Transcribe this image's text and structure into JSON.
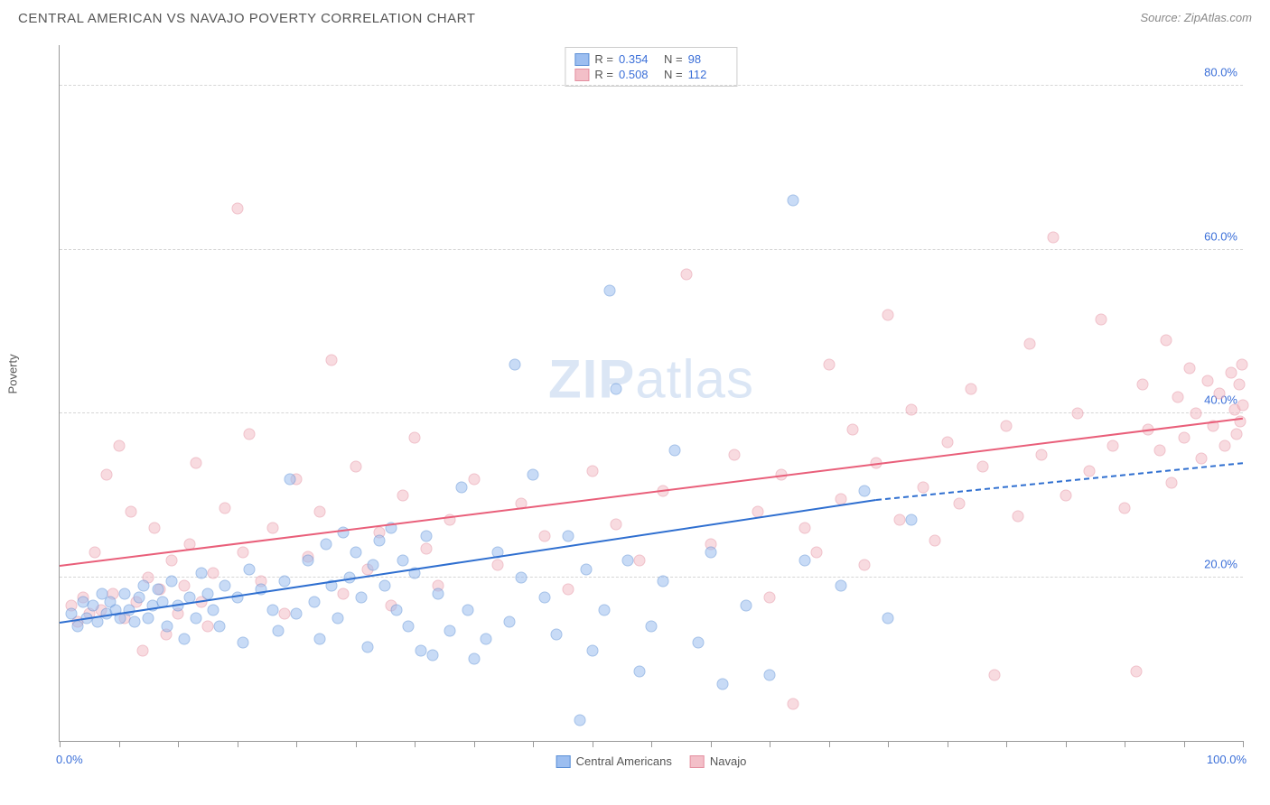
{
  "title": "CENTRAL AMERICAN VS NAVAJO POVERTY CORRELATION CHART",
  "source_prefix": "Source: ",
  "source": "ZipAtlas.com",
  "y_axis_label": "Poverty",
  "watermark_bold": "ZIP",
  "watermark_rest": "atlas",
  "chart": {
    "type": "scatter",
    "xlim": [
      0,
      100
    ],
    "ylim": [
      0,
      85
    ],
    "x_ticks": [
      0,
      5,
      10,
      15,
      20,
      25,
      30,
      35,
      40,
      45,
      50,
      55,
      60,
      65,
      70,
      75,
      80,
      85,
      90,
      95,
      100
    ],
    "x_tick_labels": {
      "0": "0.0%",
      "100": "100.0%"
    },
    "y_gridlines": [
      20,
      40,
      60,
      80
    ],
    "y_tick_labels": {
      "20": "20.0%",
      "40": "40.0%",
      "60": "60.0%",
      "80": "80.0%"
    },
    "grid_color": "#d6d6d6",
    "axis_color": "#999999",
    "tick_label_color": "#3b6fd8",
    "point_radius": 6.5,
    "point_opacity": 0.55,
    "series": [
      {
        "name": "Central Americans",
        "key": "central",
        "R": "0.354",
        "N": "98",
        "fill": "#9cbef0",
        "stroke": "#5b8fd6",
        "trend_color": "#2f6fd0",
        "trend": {
          "x1": 0,
          "y1": 14.5,
          "x2": 69,
          "y2": 29.5
        },
        "trend_dash": {
          "x1": 69,
          "y1": 29.5,
          "x2": 100,
          "y2": 34.0
        },
        "points": [
          [
            1.0,
            15.5
          ],
          [
            1.5,
            14.0
          ],
          [
            2.0,
            17.0
          ],
          [
            2.3,
            15.0
          ],
          [
            2.8,
            16.5
          ],
          [
            3.2,
            14.5
          ],
          [
            3.6,
            18.0
          ],
          [
            4.0,
            15.5
          ],
          [
            4.3,
            17.0
          ],
          [
            4.7,
            16.0
          ],
          [
            5.1,
            15.0
          ],
          [
            5.5,
            18.0
          ],
          [
            5.9,
            16.0
          ],
          [
            6.3,
            14.5
          ],
          [
            6.7,
            17.5
          ],
          [
            7.1,
            19.0
          ],
          [
            7.5,
            15.0
          ],
          [
            7.9,
            16.5
          ],
          [
            8.3,
            18.5
          ],
          [
            8.7,
            17.0
          ],
          [
            9.1,
            14.0
          ],
          [
            9.5,
            19.5
          ],
          [
            10.0,
            16.5
          ],
          [
            10.5,
            12.5
          ],
          [
            11.0,
            17.5
          ],
          [
            11.5,
            15.0
          ],
          [
            12.0,
            20.5
          ],
          [
            12.5,
            18.0
          ],
          [
            13.0,
            16.0
          ],
          [
            13.5,
            14.0
          ],
          [
            14.0,
            19.0
          ],
          [
            15.0,
            17.5
          ],
          [
            15.5,
            12.0
          ],
          [
            16.0,
            21.0
          ],
          [
            17.0,
            18.5
          ],
          [
            18.0,
            16.0
          ],
          [
            18.5,
            13.5
          ],
          [
            19.0,
            19.5
          ],
          [
            19.5,
            32.0
          ],
          [
            20.0,
            15.5
          ],
          [
            21.0,
            22.0
          ],
          [
            21.5,
            17.0
          ],
          [
            22.0,
            12.5
          ],
          [
            22.5,
            24.0
          ],
          [
            23.0,
            19.0
          ],
          [
            23.5,
            15.0
          ],
          [
            24.0,
            25.5
          ],
          [
            24.5,
            20.0
          ],
          [
            25.0,
            23.0
          ],
          [
            25.5,
            17.5
          ],
          [
            26.0,
            11.5
          ],
          [
            26.5,
            21.5
          ],
          [
            27.0,
            24.5
          ],
          [
            27.5,
            19.0
          ],
          [
            28.0,
            26.0
          ],
          [
            28.5,
            16.0
          ],
          [
            29.0,
            22.0
          ],
          [
            29.5,
            14.0
          ],
          [
            30.0,
            20.5
          ],
          [
            30.5,
            11.0
          ],
          [
            31.0,
            25.0
          ],
          [
            31.5,
            10.5
          ],
          [
            32.0,
            18.0
          ],
          [
            33.0,
            13.5
          ],
          [
            34.0,
            31.0
          ],
          [
            34.5,
            16.0
          ],
          [
            35.0,
            10.0
          ],
          [
            36.0,
            12.5
          ],
          [
            37.0,
            23.0
          ],
          [
            38.0,
            14.5
          ],
          [
            38.5,
            46.0
          ],
          [
            39.0,
            20.0
          ],
          [
            40.0,
            32.5
          ],
          [
            41.0,
            17.5
          ],
          [
            42.0,
            13.0
          ],
          [
            43.0,
            25.0
          ],
          [
            44.0,
            2.5
          ],
          [
            44.5,
            21.0
          ],
          [
            45.0,
            11.0
          ],
          [
            46.0,
            16.0
          ],
          [
            46.5,
            55.0
          ],
          [
            47.0,
            43.0
          ],
          [
            48.0,
            22.0
          ],
          [
            49.0,
            8.5
          ],
          [
            50.0,
            14.0
          ],
          [
            51.0,
            19.5
          ],
          [
            52.0,
            35.5
          ],
          [
            54.0,
            12.0
          ],
          [
            55.0,
            23.0
          ],
          [
            56.0,
            7.0
          ],
          [
            58.0,
            16.5
          ],
          [
            60.0,
            8.0
          ],
          [
            62.0,
            66.0
          ],
          [
            63.0,
            22.0
          ],
          [
            66.0,
            19.0
          ],
          [
            68.0,
            30.5
          ],
          [
            70.0,
            15.0
          ],
          [
            72.0,
            27.0
          ]
        ]
      },
      {
        "name": "Navajo",
        "key": "navajo",
        "R": "0.508",
        "N": "112",
        "fill": "#f3bfc8",
        "stroke": "#e48fa0",
        "trend_color": "#e95f7a",
        "trend": {
          "x1": 0,
          "y1": 21.5,
          "x2": 100,
          "y2": 39.5
        },
        "points": [
          [
            1.0,
            16.5
          ],
          [
            1.5,
            14.5
          ],
          [
            2.0,
            17.5
          ],
          [
            2.5,
            15.5
          ],
          [
            3.0,
            23.0
          ],
          [
            3.5,
            16.0
          ],
          [
            4.0,
            32.5
          ],
          [
            4.5,
            18.0
          ],
          [
            5.0,
            36.0
          ],
          [
            5.5,
            15.0
          ],
          [
            6.0,
            28.0
          ],
          [
            6.5,
            17.0
          ],
          [
            7.0,
            11.0
          ],
          [
            7.5,
            20.0
          ],
          [
            8.0,
            26.0
          ],
          [
            8.5,
            18.5
          ],
          [
            9.0,
            13.0
          ],
          [
            9.5,
            22.0
          ],
          [
            10.0,
            15.5
          ],
          [
            10.5,
            19.0
          ],
          [
            11.0,
            24.0
          ],
          [
            11.5,
            34.0
          ],
          [
            12.0,
            17.0
          ],
          [
            12.5,
            14.0
          ],
          [
            13.0,
            20.5
          ],
          [
            14.0,
            28.5
          ],
          [
            15.0,
            65.0
          ],
          [
            15.5,
            23.0
          ],
          [
            16.0,
            37.5
          ],
          [
            17.0,
            19.5
          ],
          [
            18.0,
            26.0
          ],
          [
            19.0,
            15.5
          ],
          [
            20.0,
            32.0
          ],
          [
            21.0,
            22.5
          ],
          [
            22.0,
            28.0
          ],
          [
            23.0,
            46.5
          ],
          [
            24.0,
            18.0
          ],
          [
            25.0,
            33.5
          ],
          [
            26.0,
            21.0
          ],
          [
            27.0,
            25.5
          ],
          [
            28.0,
            16.5
          ],
          [
            29.0,
            30.0
          ],
          [
            30.0,
            37.0
          ],
          [
            31.0,
            23.5
          ],
          [
            32.0,
            19.0
          ],
          [
            33.0,
            27.0
          ],
          [
            35.0,
            32.0
          ],
          [
            37.0,
            21.5
          ],
          [
            39.0,
            29.0
          ],
          [
            41.0,
            25.0
          ],
          [
            43.0,
            18.5
          ],
          [
            45.0,
            33.0
          ],
          [
            47.0,
            26.5
          ],
          [
            49.0,
            22.0
          ],
          [
            51.0,
            30.5
          ],
          [
            53.0,
            57.0
          ],
          [
            55.0,
            24.0
          ],
          [
            57.0,
            35.0
          ],
          [
            59.0,
            28.0
          ],
          [
            60.0,
            17.5
          ],
          [
            61.0,
            32.5
          ],
          [
            62.0,
            4.5
          ],
          [
            63.0,
            26.0
          ],
          [
            64.0,
            23.0
          ],
          [
            65.0,
            46.0
          ],
          [
            66.0,
            29.5
          ],
          [
            67.0,
            38.0
          ],
          [
            68.0,
            21.5
          ],
          [
            69.0,
            34.0
          ],
          [
            70.0,
            52.0
          ],
          [
            71.0,
            27.0
          ],
          [
            72.0,
            40.5
          ],
          [
            73.0,
            31.0
          ],
          [
            74.0,
            24.5
          ],
          [
            75.0,
            36.5
          ],
          [
            76.0,
            29.0
          ],
          [
            77.0,
            43.0
          ],
          [
            78.0,
            33.5
          ],
          [
            79.0,
            8.0
          ],
          [
            80.0,
            38.5
          ],
          [
            81.0,
            27.5
          ],
          [
            82.0,
            48.5
          ],
          [
            83.0,
            35.0
          ],
          [
            84.0,
            61.5
          ],
          [
            85.0,
            30.0
          ],
          [
            86.0,
            40.0
          ],
          [
            87.0,
            33.0
          ],
          [
            88.0,
            51.5
          ],
          [
            89.0,
            36.0
          ],
          [
            90.0,
            28.5
          ],
          [
            91.0,
            8.5
          ],
          [
            91.5,
            43.5
          ],
          [
            92.0,
            38.0
          ],
          [
            93.0,
            35.5
          ],
          [
            93.5,
            49.0
          ],
          [
            94.0,
            31.5
          ],
          [
            94.5,
            42.0
          ],
          [
            95.0,
            37.0
          ],
          [
            95.5,
            45.5
          ],
          [
            96.0,
            40.0
          ],
          [
            96.5,
            34.5
          ],
          [
            97.0,
            44.0
          ],
          [
            97.5,
            38.5
          ],
          [
            98.0,
            42.5
          ],
          [
            98.5,
            36.0
          ],
          [
            99.0,
            45.0
          ],
          [
            99.3,
            40.5
          ],
          [
            99.5,
            37.5
          ],
          [
            99.7,
            43.5
          ],
          [
            99.8,
            39.0
          ],
          [
            99.9,
            46.0
          ],
          [
            100.0,
            41.0
          ]
        ]
      }
    ]
  },
  "legend_top": {
    "R_label": "R =",
    "N_label": "N ="
  },
  "legend_bottom": [
    {
      "label": "Central Americans",
      "fill": "#9cbef0",
      "stroke": "#5b8fd6"
    },
    {
      "label": "Navajo",
      "fill": "#f3bfc8",
      "stroke": "#e48fa0"
    }
  ]
}
